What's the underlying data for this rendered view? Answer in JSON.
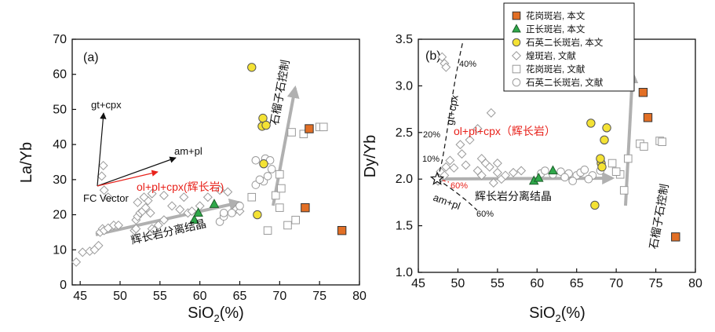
{
  "colors": {
    "granite_porphyry": "#e26f25",
    "orthoclase_porphyry": "#2fa84a",
    "quartz_porphyry": "#f4e234",
    "literature": "#9a9a9a",
    "arrow_gray": "#b0b0b0",
    "red": "#e8221b"
  },
  "legend": {
    "items": [
      {
        "label": "花岗斑岩, 本文",
        "marker": "square-filled"
      },
      {
        "label": "正长斑岩, 本文",
        "marker": "triangle-filled"
      },
      {
        "label": "石英二长斑岩, 本文",
        "marker": "circle-filled"
      },
      {
        "label": "煌斑岩, 文献",
        "marker": "diamond-open"
      },
      {
        "label": "花岗斑岩, 文献",
        "marker": "square-open"
      },
      {
        "label": "石英二长斑岩, 文献",
        "marker": "circle-open"
      }
    ]
  },
  "chart_data": [
    {
      "type": "scatter",
      "panel_label": "(a)",
      "xlabel_main": "SiO",
      "xlabel_sub": "2",
      "xlabel_tail": "(%)",
      "ylabel": "La/Yb",
      "xlim": [
        44,
        80
      ],
      "ylim": [
        0,
        70
      ],
      "xticks": [
        "45",
        "50",
        "55",
        "60",
        "65",
        "70",
        "75",
        "80"
      ],
      "yticks": [
        "0",
        "10",
        "20",
        "30",
        "40",
        "50",
        "60",
        "70"
      ],
      "annotations": {
        "gt_cpx": "gt+cpx",
        "am_pl": "am+pl",
        "ol_pl_cpx": "ol+pl+cpx(辉长岩)",
        "fc_vector": "FC Vector",
        "gabbro_fc": "辉长岩分离结晶",
        "garnet_control": "石榴子石控制"
      },
      "series": [
        {
          "name": "花岗斑岩, 本文",
          "points": [
            [
              73.2,
              22
            ],
            [
              73.7,
              44.5
            ],
            [
              77.8,
              15.5
            ]
          ]
        },
        {
          "name": "正长斑岩, 本文",
          "points": [
            [
              59.3,
              18.5
            ],
            [
              59.8,
              20.5
            ],
            [
              61.8,
              23
            ]
          ]
        },
        {
          "name": "石英二长斑岩, 本文",
          "points": [
            [
              66.5,
              62
            ],
            [
              67.2,
              20
            ],
            [
              67.9,
              47.5
            ],
            [
              67.8,
              45.2
            ],
            [
              68.3,
              45.5
            ],
            [
              68.0,
              34.5
            ]
          ]
        },
        {
          "name": "煌斑岩, 文献",
          "points": [
            [
              44.5,
              6.5
            ],
            [
              45.3,
              9.3
            ],
            [
              46.2,
              9.6
            ],
            [
              46.8,
              10
            ],
            [
              47.3,
              11.2
            ],
            [
              47.5,
              15
            ],
            [
              47.8,
              16
            ],
            [
              48.0,
              15.5
            ],
            [
              48.5,
              16.2
            ],
            [
              49.2,
              17
            ],
            [
              49.8,
              17
            ],
            [
              47.9,
              34
            ],
            [
              47.7,
              31
            ],
            [
              48.0,
              27
            ],
            [
              48.5,
              25
            ],
            [
              51.8,
              15.5
            ],
            [
              52.0,
              16
            ],
            [
              52.0,
              18.5
            ],
            [
              52.2,
              19.5
            ],
            [
              52.5,
              20.5
            ],
            [
              52.8,
              21
            ],
            [
              53.2,
              22
            ],
            [
              53.5,
              24
            ],
            [
              53.8,
              20.5
            ],
            [
              54.0,
              16
            ],
            [
              54.3,
              15.5
            ],
            [
              54.8,
              17
            ],
            [
              55.5,
              18.5
            ],
            [
              52.2,
              23.5
            ],
            [
              53.0,
              25
            ],
            [
              54.0,
              26
            ],
            [
              55.5,
              25.5
            ],
            [
              56.5,
              22.5
            ],
            [
              57.5,
              21.5
            ],
            [
              58.0,
              25
            ],
            [
              58.5,
              20.5
            ],
            [
              59.0,
              21
            ],
            [
              60.0,
              22.5
            ],
            [
              61.0,
              25
            ],
            [
              62.5,
              27
            ],
            [
              63.5,
              26.5
            ],
            [
              64.5,
              21.5
            ],
            [
              65.0,
              21
            ]
          ]
        },
        {
          "name": "花岗斑岩, 文献",
          "points": [
            [
              66.5,
              25
            ],
            [
              69.5,
              25.5
            ],
            [
              70.0,
              22
            ],
            [
              70.2,
              27.5
            ],
            [
              71.0,
              17
            ],
            [
              72.0,
              18.5
            ],
            [
              68.5,
              15.5
            ],
            [
              70.0,
              31.5
            ],
            [
              71.5,
              43.5
            ],
            [
              73.0,
              43
            ],
            [
              75.0,
              45
            ],
            [
              75.5,
              45
            ]
          ]
        },
        {
          "name": "石英二长斑岩, 文献",
          "points": [
            [
              62.5,
              18
            ],
            [
              63.0,
              19.5
            ],
            [
              64.0,
              20.5
            ],
            [
              65.0,
              22.5
            ],
            [
              67.0,
              28.5
            ],
            [
              68.0,
              29.5
            ],
            [
              68.5,
              31
            ],
            [
              69.0,
              33
            ],
            [
              67.5,
              30
            ],
            [
              67.0,
              35.5
            ],
            [
              68.2,
              36
            ],
            [
              68.8,
              35.5
            ],
            [
              63.0,
              20.5
            ]
          ]
        }
      ]
    },
    {
      "type": "scatter",
      "panel_label": "(b)",
      "xlabel_main": "SiO",
      "xlabel_sub": "2",
      "xlabel_tail": "(%)",
      "ylabel": "Dy/Yb",
      "xlim": [
        45,
        80
      ],
      "ylim": [
        1.0,
        3.5
      ],
      "xticks": [
        "45",
        "50",
        "55",
        "60",
        "65",
        "70",
        "75",
        "80"
      ],
      "yticks": [
        "1.0",
        "1.5",
        "2.0",
        "2.5",
        "3.0",
        "3.5"
      ],
      "annotations": {
        "pct40": "40%",
        "pct20": "20%",
        "pct10": "10%",
        "pct60_red": "60%",
        "pct60": "60%",
        "gt_cpx": "gt+cpx",
        "am_pl": "am+pl",
        "ol_pl_cpx": "ol+pl+cpx（辉长岩）",
        "gabbro_fc": "辉长岩分离结晶",
        "garnet_control": "石榴子石控制"
      },
      "series": [
        {
          "name": "花岗斑岩, 本文",
          "points": [
            [
              73.4,
              2.93
            ],
            [
              74.0,
              2.66
            ],
            [
              77.5,
              1.38
            ]
          ]
        },
        {
          "name": "正长斑岩, 本文",
          "points": [
            [
              59.6,
              1.98
            ],
            [
              60.2,
              2.01
            ],
            [
              62.0,
              2.09
            ]
          ]
        },
        {
          "name": "石英二长斑岩, 本文",
          "points": [
            [
              66.8,
              2.6
            ],
            [
              67.3,
              1.72
            ],
            [
              68.1,
              2.17
            ],
            [
              68.5,
              2.42
            ],
            [
              68.8,
              2.55
            ],
            [
              68.2,
              2.13
            ],
            [
              68.0,
              2.22
            ]
          ]
        },
        {
          "name": "煌斑岩, 文献",
          "points": [
            [
              48.0,
              3.31
            ],
            [
              48.3,
              3.24
            ],
            [
              48.5,
              3.2
            ],
            [
              54.2,
              2.71
            ],
            [
              47.8,
              2.08
            ],
            [
              48.3,
              2.04
            ],
            [
              50.3,
              2.37
            ],
            [
              51.5,
              2.42
            ],
            [
              52.5,
              2.54
            ],
            [
              53.0,
              2.22
            ],
            [
              53.5,
              2.17
            ],
            [
              52.5,
              2.09
            ],
            [
              53.0,
              2.04
            ],
            [
              54.0,
              2.13
            ],
            [
              55.0,
              2.07
            ],
            [
              55.5,
              2.0
            ],
            [
              56.0,
              2.04
            ],
            [
              57.0,
              2.07
            ],
            [
              58.0,
              2.09
            ],
            [
              48.5,
              2.13
            ],
            [
              49.0,
              2.2
            ],
            [
              49.5,
              2.12
            ],
            [
              50.5,
              2.27
            ],
            [
              51.0,
              2.15
            ],
            [
              54.5,
              1.96
            ],
            [
              55.0,
              2.17
            ],
            [
              47.5,
              1.98
            ]
          ]
        },
        {
          "name": "花岗斑岩, 文献",
          "points": [
            [
              70.5,
              2.05
            ],
            [
              71.0,
              1.88
            ],
            [
              71.5,
              2.22
            ],
            [
              73.0,
              2.38
            ],
            [
              73.5,
              2.35
            ],
            [
              75.5,
              2.41
            ],
            [
              75.8,
              2.4
            ],
            [
              70.0,
              2.08
            ],
            [
              69.5,
              2.17
            ]
          ]
        },
        {
          "name": "石英二长斑岩, 文献",
          "points": [
            [
              60.5,
              2.06
            ],
            [
              61.0,
              2.09
            ],
            [
              62.0,
              2.05
            ],
            [
              63.0,
              2.08
            ],
            [
              64.0,
              2.06
            ],
            [
              65.0,
              2.04
            ],
            [
              65.5,
              2.07
            ],
            [
              66.0,
              2.1
            ],
            [
              67.0,
              2.04
            ],
            [
              68.0,
              2.09
            ],
            [
              64.5,
              1.98
            ],
            [
              63.5,
              2.02
            ],
            [
              66.5,
              2.0
            ]
          ]
        }
      ]
    }
  ]
}
